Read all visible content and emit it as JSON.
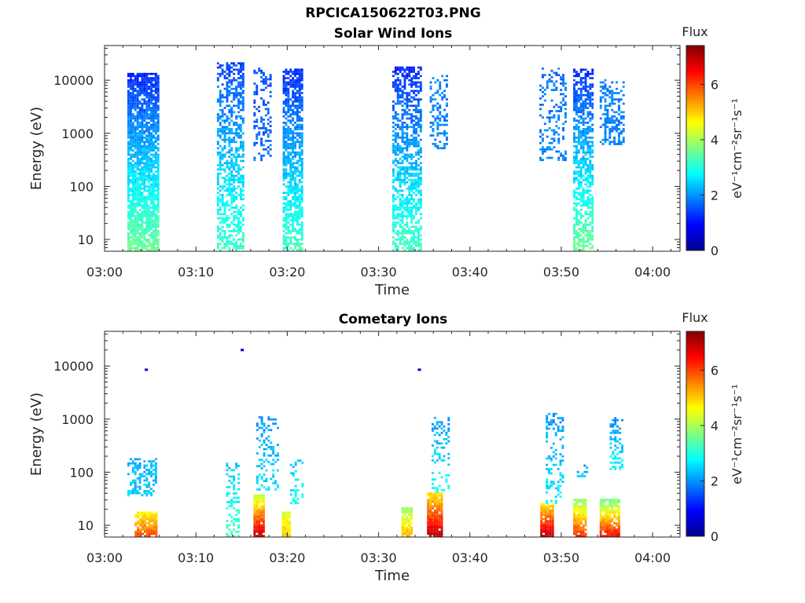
{
  "figure": {
    "title": "RPCICA150622T03.PNG"
  },
  "colors": {
    "colormap": "jet",
    "axis": "#262626",
    "background": "#ffffff"
  },
  "chart_data": [
    {
      "type": "heatmap",
      "title": "Solar Wind Ions",
      "xlabel": "Time",
      "ylabel": "Energy (eV)",
      "x_ticks": [
        "03:00",
        "03:10",
        "03:20",
        "03:30",
        "03:40",
        "03:50",
        "04:00"
      ],
      "xlim_minutes": [
        0,
        63
      ],
      "y_ticks": [
        "10",
        "100",
        "1000",
        "10000"
      ],
      "y_scale": "log",
      "ylim": [
        6,
        45000
      ],
      "colorbar": {
        "label": "eV⁻¹cm⁻²sr⁻¹s⁻¹",
        "title": "Flux",
        "ticks": [
          "0",
          "2",
          "4",
          "6"
        ],
        "range": [
          0,
          7.4
        ]
      },
      "bursts": [
        {
          "t_start_min": 2.5,
          "t_end_min": 5.8,
          "e_min": 6,
          "e_max": 13000,
          "flux_low_energy": 3.6,
          "flux_high_energy": 1.2,
          "density": 0.85
        },
        {
          "t_start_min": 12.3,
          "t_end_min": 15.2,
          "e_min": 6,
          "e_max": 20000,
          "flux_low_energy": 3.2,
          "flux_high_energy": 1.4,
          "density": 0.55
        },
        {
          "t_start_min": 16.3,
          "t_end_min": 18.3,
          "e_min": 300,
          "e_max": 16000,
          "flux_low_energy": 1.7,
          "flux_high_energy": 1.5,
          "density": 0.3
        },
        {
          "t_start_min": 19.5,
          "t_end_min": 21.6,
          "e_min": 6,
          "e_max": 16000,
          "flux_low_energy": 3.3,
          "flux_high_energy": 1.2,
          "density": 0.7
        },
        {
          "t_start_min": 31.5,
          "t_end_min": 34.6,
          "e_min": 6,
          "e_max": 18000,
          "flux_low_energy": 3.3,
          "flux_high_energy": 1.2,
          "density": 0.6
        },
        {
          "t_start_min": 35.6,
          "t_end_min": 37.5,
          "e_min": 500,
          "e_max": 12000,
          "flux_low_energy": 1.9,
          "flux_high_energy": 1.8,
          "density": 0.35
        },
        {
          "t_start_min": 47.6,
          "t_end_min": 50.5,
          "e_min": 300,
          "e_max": 16000,
          "flux_low_energy": 1.9,
          "flux_high_energy": 1.7,
          "density": 0.28
        },
        {
          "t_start_min": 51.3,
          "t_end_min": 53.4,
          "e_min": 6,
          "e_max": 16000,
          "flux_low_energy": 3.6,
          "flux_high_energy": 1.2,
          "density": 0.65
        },
        {
          "t_start_min": 54.2,
          "t_end_min": 56.9,
          "e_min": 600,
          "e_max": 10000,
          "flux_low_energy": 1.9,
          "flux_high_energy": 1.8,
          "density": 0.4
        }
      ]
    },
    {
      "type": "heatmap",
      "title": "Cometary Ions",
      "xlabel": "Time",
      "ylabel": "Energy (eV)",
      "x_ticks": [
        "03:00",
        "03:10",
        "03:20",
        "03:30",
        "03:40",
        "03:50",
        "04:00"
      ],
      "xlim_minutes": [
        0,
        63
      ],
      "y_ticks": [
        "10",
        "100",
        "1000",
        "10000"
      ],
      "y_scale": "log",
      "ylim": [
        6,
        45000
      ],
      "colorbar": {
        "label": "eV⁻¹cm⁻²sr⁻¹s⁻¹",
        "title": "Flux",
        "ticks": [
          "0",
          "2",
          "4",
          "6"
        ],
        "range": [
          0,
          7.4
        ]
      },
      "bursts": [
        {
          "t_start_min": 3.3,
          "t_end_min": 5.6,
          "e_min": 6,
          "e_max": 17,
          "flux_low_energy": 6.0,
          "flux_high_energy": 4.6,
          "density": 0.9
        },
        {
          "t_start_min": 2.5,
          "t_end_min": 5.6,
          "e_min": 35,
          "e_max": 170,
          "flux_low_energy": 2.4,
          "flux_high_energy": 2.2,
          "density": 0.45
        },
        {
          "t_start_min": 13.3,
          "t_end_min": 14.8,
          "e_min": 6,
          "e_max": 140,
          "flux_low_energy": 3.3,
          "flux_high_energy": 2.3,
          "density": 0.35
        },
        {
          "t_start_min": 16.3,
          "t_end_min": 17.5,
          "e_min": 6,
          "e_max": 35,
          "flux_low_energy": 7.0,
          "flux_high_energy": 4.2,
          "density": 0.95
        },
        {
          "t_start_min": 16.6,
          "t_end_min": 18.9,
          "e_min": 45,
          "e_max": 1100,
          "flux_low_energy": 2.6,
          "flux_high_energy": 2.0,
          "density": 0.3
        },
        {
          "t_start_min": 19.4,
          "t_end_min": 20.3,
          "e_min": 6,
          "e_max": 17,
          "flux_low_energy": 5.0,
          "flux_high_energy": 4.4,
          "density": 0.95
        },
        {
          "t_start_min": 20.3,
          "t_end_min": 21.6,
          "e_min": 25,
          "e_max": 170,
          "flux_low_energy": 2.8,
          "flux_high_energy": 2.4,
          "density": 0.3
        },
        {
          "t_start_min": 32.5,
          "t_end_min": 33.6,
          "e_min": 6,
          "e_max": 20,
          "flux_low_energy": 5.2,
          "flux_high_energy": 4.0,
          "density": 0.9
        },
        {
          "t_start_min": 35.3,
          "t_end_min": 36.9,
          "e_min": 6,
          "e_max": 40,
          "flux_low_energy": 7.0,
          "flux_high_energy": 4.8,
          "density": 0.95
        },
        {
          "t_start_min": 35.8,
          "t_end_min": 37.7,
          "e_min": 40,
          "e_max": 1100,
          "flux_low_energy": 2.9,
          "flux_high_energy": 2.0,
          "density": 0.3
        },
        {
          "t_start_min": 47.7,
          "t_end_min": 49.1,
          "e_min": 6,
          "e_max": 25,
          "flux_low_energy": 7.0,
          "flux_high_energy": 4.8,
          "density": 0.95
        },
        {
          "t_start_min": 48.3,
          "t_end_min": 50.2,
          "e_min": 25,
          "e_max": 1200,
          "flux_low_energy": 2.7,
          "flux_high_energy": 2.0,
          "density": 0.3
        },
        {
          "t_start_min": 51.3,
          "t_end_min": 52.8,
          "e_min": 6,
          "e_max": 30,
          "flux_low_energy": 6.2,
          "flux_high_energy": 3.8,
          "density": 0.9
        },
        {
          "t_start_min": 51.7,
          "t_end_min": 52.8,
          "e_min": 80,
          "e_max": 130,
          "flux_low_energy": 2.3,
          "flux_high_energy": 2.1,
          "density": 0.4
        },
        {
          "t_start_min": 54.2,
          "t_end_min": 56.3,
          "e_min": 6,
          "e_max": 30,
          "flux_low_energy": 6.5,
          "flux_high_energy": 3.6,
          "density": 0.9
        },
        {
          "t_start_min": 55.3,
          "t_end_min": 56.8,
          "e_min": 100,
          "e_max": 1200,
          "flux_low_energy": 2.8,
          "flux_high_energy": 1.9,
          "density": 0.35
        }
      ],
      "points": [
        {
          "t_min": 4.4,
          "energy": 8500,
          "flux": 0.6
        },
        {
          "t_min": 14.9,
          "energy": 20000,
          "flux": 0.5
        },
        {
          "t_min": 34.3,
          "energy": 8500,
          "flux": 0.5
        }
      ]
    }
  ]
}
